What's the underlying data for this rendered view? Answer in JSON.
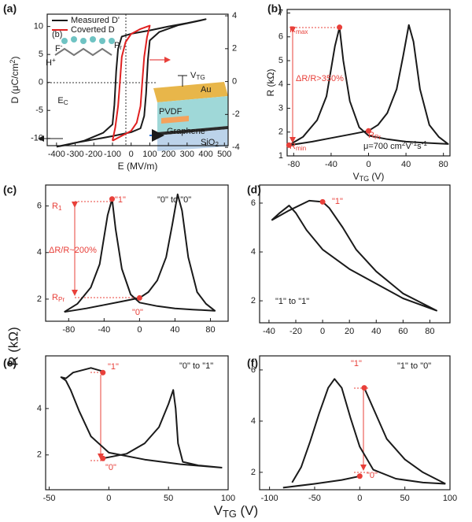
{
  "figure": {
    "ylabel": "R (kΩ)",
    "xlabel": [
      "V",
      {
        "sub": "TG"
      },
      " (V)"
    ]
  },
  "chart_data": [
    {
      "type": "line",
      "panel": "(a)",
      "xlabel": "E (MV/m)",
      "ylabel": [
        "D (μC/cm",
        {
          "sup": "2"
        },
        ")"
      ],
      "xlim": [
        -450,
        520
      ],
      "xticks": [
        -400,
        -300,
        -200,
        -100,
        0,
        100,
        200,
        300,
        400,
        500
      ],
      "ylim": [
        -11.3,
        12.2
      ],
      "yticks": [
        -10,
        -5,
        0,
        5,
        10
      ],
      "y2lim": [
        -3.9,
        4.1
      ],
      "y2ticks": [
        -4,
        -2,
        0,
        2,
        4
      ],
      "legend": "upper left",
      "series": [
        {
          "name": "Measured D'",
          "color": "#1a1a1a",
          "x": [
            -400,
            -300,
            -200,
            -100,
            0,
            50,
            70,
            80,
            90,
            100,
            150,
            250,
            350,
            400,
            300,
            200,
            100,
            0,
            -50,
            -70,
            -80,
            -90,
            -100,
            -150,
            -250,
            -350,
            -400
          ],
          "values": [
            -11.5,
            -10.8,
            -10.2,
            -9.6,
            -8.9,
            -8.2,
            -6,
            -2,
            4,
            7.5,
            9,
            10.2,
            10.9,
            11.3,
            10.6,
            10,
            9.3,
            8.7,
            8.2,
            6,
            2,
            -4,
            -7.5,
            -9,
            -10.4,
            -11.2,
            -11.5
          ]
        },
        {
          "name": "Coverted D",
          "color": "#e02020",
          "axis": "y2",
          "x": [
            -100,
            -50,
            0,
            30,
            50,
            60,
            70,
            85,
            100,
            50,
            0,
            -30,
            -50,
            -60,
            -70,
            -85,
            -100
          ],
          "values": [
            -3.6,
            -3.3,
            -3,
            -2.5,
            -1.5,
            0,
            1.5,
            2.7,
            3.4,
            3.2,
            2.9,
            2.4,
            1.5,
            0,
            -1.5,
            -2.8,
            -3.6
          ]
        }
      ],
      "annotations": [
        {
          "text": [
            "P",
            {
              "sub": "r"
            }
          ],
          "color": "#1a1a1a"
        },
        {
          "text": [
            "E",
            {
              "sub": "C"
            }
          ],
          "color": "#1a1a1a"
        }
      ],
      "inset": [
        "(b)",
        [
          "F",
          {
            "sup": "-"
          }
        ],
        [
          "H",
          {
            "sup": "+"
          }
        ],
        "Au",
        "PVDF",
        "Graphene",
        [
          "SiO",
          {
            "sub": "2"
          }
        ],
        [
          "V",
          {
            "sub": "TG"
          }
        ]
      ]
    },
    {
      "type": "line",
      "panel": "(b)",
      "xlabel": [
        "V",
        {
          "sub": "TG"
        },
        " (V)"
      ],
      "ylabel": "R (kΩ)",
      "xlim": [
        -87,
        87
      ],
      "xticks": [
        -80,
        -40,
        0,
        40,
        80
      ],
      "ylim": [
        1,
        7.15
      ],
      "yticks": [
        1,
        2,
        3,
        4,
        5,
        6,
        7
      ],
      "series": [
        {
          "color": "#1a1a1a",
          "x": [
            -85,
            -60,
            -40,
            -20,
            0,
            10,
            20,
            30,
            37,
            43,
            48,
            55,
            65,
            75,
            85,
            60,
            40,
            20,
            0,
            -10,
            -20,
            -27,
            -31,
            -36,
            -45,
            -55,
            -70,
            -85
          ],
          "values": [
            1.45,
            1.6,
            1.75,
            1.9,
            2.05,
            2.3,
            2.8,
            3.8,
            5.2,
            6.5,
            5.8,
            3.8,
            2.3,
            1.8,
            1.5,
            1.55,
            1.6,
            1.7,
            1.85,
            2.2,
            3.3,
            5,
            6.4,
            5.6,
            3.5,
            2.5,
            1.8,
            1.45
          ]
        }
      ],
      "points": {
        "color": "#e8403a",
        "x": [
          -31,
          0,
          -85
        ],
        "values": [
          6.4,
          2.05,
          1.45
        ]
      },
      "annotations": [
        {
          "text": [
            "R",
            {
              "sub": "max"
            }
          ],
          "color": "#e8403a"
        },
        {
          "text": "ΔR/R>350%",
          "color": "#e8403a"
        },
        {
          "text": [
            "R",
            {
              "sub": "min"
            }
          ],
          "color": "#e8403a"
        },
        {
          "text": [
            "R",
            {
              "sub": "Pr"
            }
          ],
          "color": "#e8403a"
        },
        {
          "text": [
            "μ=700 cm",
            {
              "sup": "2"
            },
            "V",
            {
              "sup": "-1"
            },
            "s",
            {
              "sup": "-1"
            }
          ],
          "color": "#1a1a1a"
        }
      ]
    },
    {
      "type": "line",
      "panel": "(c)",
      "xlim": [
        -106,
        100
      ],
      "xticks": [
        -80,
        -40,
        0,
        40,
        80
      ],
      "ylim": [
        1.05,
        6.9
      ],
      "yticks": [
        2,
        4,
        6
      ],
      "series": [
        {
          "color": "#1a1a1a",
          "x": [
            -85,
            -60,
            -40,
            -20,
            0,
            10,
            20,
            30,
            37,
            43,
            48,
            55,
            65,
            75,
            85,
            60,
            40,
            20,
            0,
            -10,
            -20,
            -27,
            -31,
            -36,
            -45,
            -55,
            -70,
            -85
          ],
          "values": [
            1.45,
            1.6,
            1.75,
            1.9,
            2.05,
            2.3,
            2.8,
            3.8,
            5.2,
            6.5,
            5.8,
            3.8,
            2.3,
            1.8,
            1.5,
            1.55,
            1.6,
            1.7,
            1.85,
            2.2,
            3.3,
            5,
            6.3,
            5.6,
            3.5,
            2.5,
            1.8,
            1.45
          ]
        }
      ],
      "points": {
        "color": "#e8403a",
        "x": [
          -31,
          0
        ],
        "values": [
          6.3,
          2.05
        ]
      },
      "annotations": [
        {
          "text": [
            "R",
            {
              "sub": "1"
            }
          ],
          "color": "#e8403a"
        },
        {
          "text": "\"1\"",
          "color": "#e8403a"
        },
        {
          "text": "\"0\" to \"0\"",
          "color": "#1a1a1a"
        },
        {
          "text": "ΔR/R~200%",
          "color": "#e8403a"
        },
        {
          "text": [
            "R",
            {
              "sub": "Pr"
            }
          ],
          "color": "#e8403a"
        },
        {
          "text": "\"0\"",
          "color": "#e8403a"
        }
      ]
    },
    {
      "type": "line",
      "panel": "(d)",
      "xlim": [
        -47,
        95
      ],
      "xticks": [
        -40,
        -20,
        0,
        20,
        40,
        60,
        80
      ],
      "ylim": [
        1.1,
        6.74
      ],
      "yticks": [
        2,
        4,
        6
      ],
      "series": [
        {
          "color": "#1a1a1a",
          "x": [
            -38,
            -32,
            -25,
            -20,
            -12,
            0,
            20,
            40,
            60,
            85,
            60,
            40,
            25,
            15,
            5,
            0,
            -10,
            -25,
            -38
          ],
          "values": [
            5.3,
            5.6,
            5.9,
            5.6,
            4.9,
            4.1,
            3.3,
            2.7,
            2.1,
            1.6,
            2.3,
            3.2,
            4.1,
            5,
            5.8,
            6.05,
            6.1,
            5.7,
            5.3
          ]
        }
      ],
      "points": {
        "color": "#e8403a",
        "x": [
          0
        ],
        "values": [
          6.05
        ]
      },
      "annotations": [
        {
          "text": "\"1\"",
          "color": "#e8403a"
        },
        {
          "text": "\"1\" to \"1\"",
          "color": "#1a1a1a"
        }
      ]
    },
    {
      "type": "line",
      "panel": "(e)",
      "xlim": [
        -53,
        100
      ],
      "xticks": [
        -50,
        0,
        50,
        100
      ],
      "ylim": [
        0.5,
        6.27
      ],
      "yticks": [
        2,
        4
      ],
      "series": [
        {
          "color": "#1a1a1a",
          "x": [
            95,
            60,
            30,
            0,
            -15,
            -25,
            -32,
            -36,
            -40,
            -36,
            -30,
            -15,
            -5,
            null,
            -5,
            15,
            30,
            42,
            50,
            54,
            56,
            58,
            62,
            75,
            95
          ],
          "values": [
            1.45,
            1.6,
            1.8,
            2.1,
            2.8,
            3.9,
            4.8,
            5.2,
            5.35,
            5.3,
            5.55,
            5.75,
            5.6,
            null,
            1.85,
            2.05,
            2.5,
            3.2,
            4.2,
            4.8,
            4,
            2.5,
            1.7,
            1.55,
            1.45
          ]
        }
      ],
      "points": {
        "color": "#e8403a",
        "x": [
          -5,
          -5
        ],
        "values": [
          5.55,
          1.85
        ]
      },
      "annotations": [
        {
          "text": "\"1\"",
          "color": "#e8403a"
        },
        {
          "text": "\"0\"",
          "color": "#e8403a"
        },
        {
          "text": "\"0\" to \"1\"",
          "color": "#1a1a1a"
        }
      ]
    },
    {
      "type": "line",
      "panel": "(f)",
      "xlim": [
        -111,
        100
      ],
      "xticks": [
        -100,
        -50,
        0,
        50,
        100
      ],
      "ylim": [
        1.32,
        6.55
      ],
      "yticks": [
        2,
        4,
        6
      ],
      "series": [
        {
          "color": "#1a1a1a",
          "x": [
            -85,
            -50,
            -20,
            0,
            null,
            -75,
            -65,
            -55,
            -45,
            -35,
            -28,
            -20,
            -10,
            0,
            15,
            40,
            70,
            95,
            null,
            5,
            15,
            30,
            50,
            70,
            95
          ],
          "values": [
            1.4,
            1.55,
            1.7,
            1.85,
            null,
            1.6,
            2.2,
            3.2,
            4.3,
            5.3,
            5.65,
            5.3,
            4.1,
            3,
            2.1,
            1.75,
            1.6,
            1.55,
            null,
            5.3,
            4.5,
            3.3,
            2.5,
            2,
            1.55
          ]
        }
      ],
      "points": {
        "color": "#e8403a",
        "x": [
          5,
          0
        ],
        "values": [
          5.3,
          1.85
        ]
      },
      "annotations": [
        {
          "text": "\"1\" to \"0\"",
          "color": "#1a1a1a"
        },
        {
          "text": "\"1\"",
          "color": "#e8403a"
        },
        {
          "text": "\"0\"",
          "color": "#e8403a"
        }
      ]
    }
  ]
}
